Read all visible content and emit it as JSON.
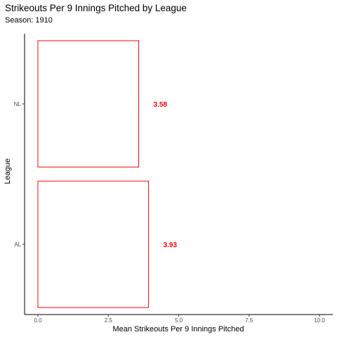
{
  "chart_data": {
    "type": "bar",
    "orientation": "horizontal",
    "title": "Strikeouts Per 9 Innings Pitched by League",
    "subtitle": "Season: 1910",
    "xlabel": "Mean Strikeouts Per 9 Innings Pitched",
    "ylabel": "League",
    "categories": [
      "AL",
      "NL"
    ],
    "values": [
      3.93,
      3.58
    ],
    "value_labels": [
      "3.93",
      "3.58"
    ],
    "xlim": [
      0,
      10
    ],
    "x_ticks": [
      0,
      2.5,
      5,
      7.5,
      10
    ],
    "x_tick_labels": [
      "0.0",
      "2.5",
      "5.0",
      "7.5",
      "10.0"
    ],
    "grid": false,
    "legend": "none",
    "bar_fill": "none",
    "bar_outline_color": "#ff0000",
    "label_color": "#ff0000"
  }
}
